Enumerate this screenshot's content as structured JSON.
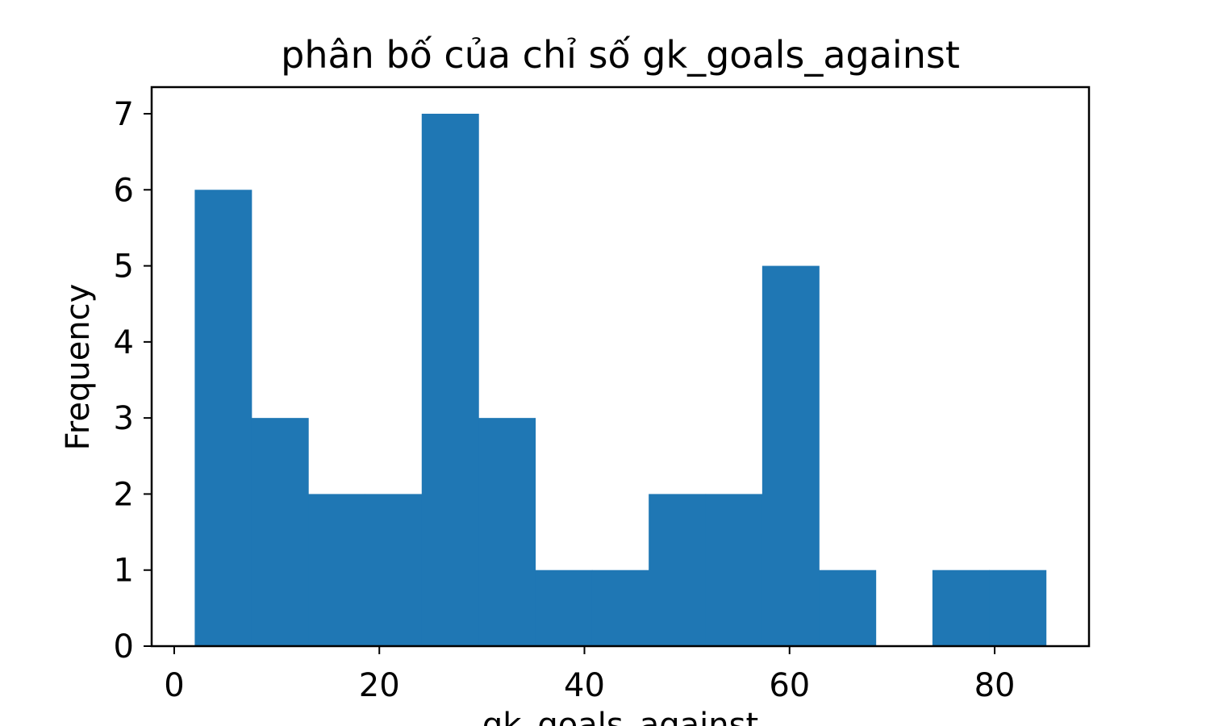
{
  "chart_data": {
    "type": "bar",
    "title": "phân bố của chỉ số gk_goals_against",
    "xlabel": "gk_goals_against",
    "ylabel": "Frequency",
    "xlim": [
      -2.2,
      89.2
    ],
    "ylim": [
      0,
      7.35
    ],
    "grid": false,
    "legend": "none",
    "bar_color": "#1f77b4",
    "bin_edges": [
      2,
      7.533,
      13.067,
      18.6,
      24.133,
      29.667,
      35.2,
      40.733,
      46.267,
      51.8,
      57.333,
      62.867,
      68.4,
      73.933,
      79.467,
      85
    ],
    "values": [
      6,
      3,
      2,
      2,
      7,
      3,
      1,
      1,
      2,
      2,
      5,
      1,
      0,
      1,
      1
    ],
    "x_ticks": [
      {
        "value": 0,
        "label": "0"
      },
      {
        "value": 20,
        "label": "20"
      },
      {
        "value": 40,
        "label": "40"
      },
      {
        "value": 60,
        "label": "60"
      },
      {
        "value": 80,
        "label": "80"
      }
    ],
    "y_ticks": [
      {
        "value": 0,
        "label": "0"
      },
      {
        "value": 1,
        "label": "1"
      },
      {
        "value": 2,
        "label": "2"
      },
      {
        "value": 3,
        "label": "3"
      },
      {
        "value": 4,
        "label": "4"
      },
      {
        "value": 5,
        "label": "5"
      },
      {
        "value": 6,
        "label": "6"
      },
      {
        "value": 7,
        "label": "7"
      }
    ]
  }
}
